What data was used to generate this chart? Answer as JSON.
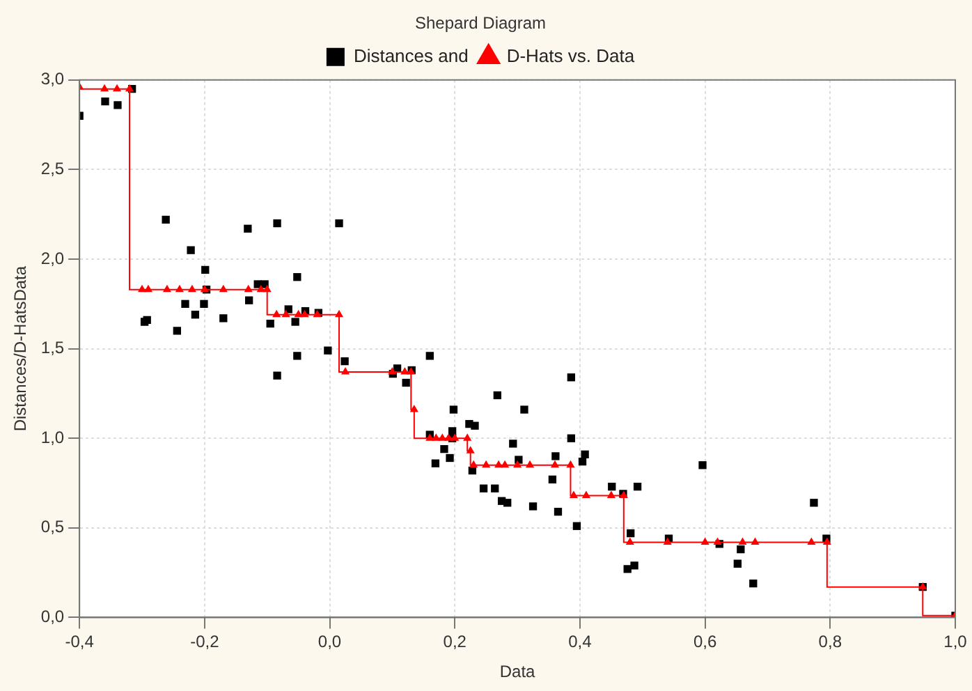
{
  "chart_data": {
    "type": "scatter",
    "title": "Shepard Diagram",
    "xlabel": "Data",
    "ylabel": "Distances/D-HatsData",
    "legend": "top",
    "grid": true,
    "xlim": [
      -0.4,
      1.0
    ],
    "xticks": [
      {
        "value": -0.4,
        "label": "-0,4"
      },
      {
        "value": -0.2,
        "label": "-0,2"
      },
      {
        "value": 0,
        "label": "0,0"
      },
      {
        "value": 0.2,
        "label": "0,2"
      },
      {
        "value": 0.4,
        "label": "0,4"
      },
      {
        "value": 0.6,
        "label": "0,6"
      },
      {
        "value": 0.8,
        "label": "0,8"
      },
      {
        "value": 1.0,
        "label": "1,0"
      }
    ],
    "ylim": [
      0,
      3.0
    ],
    "yticks": [
      {
        "value": 0,
        "label": "0,0"
      },
      {
        "value": 0.5,
        "label": "0,5"
      },
      {
        "value": 1.0,
        "label": "1,0"
      },
      {
        "value": 1.5,
        "label": "1,5"
      },
      {
        "value": 2.0,
        "label": "2,0"
      },
      {
        "value": 2.5,
        "label": "2,5"
      },
      {
        "value": 3.0,
        "label": "3,0"
      }
    ],
    "series": [
      {
        "name": "Distances and",
        "marker": "square",
        "color": "#000000",
        "x": [
          -0.4,
          -0.359,
          -0.339,
          -0.316,
          -0.262,
          -0.222,
          -0.199,
          -0.197,
          -0.231,
          -0.201,
          -0.215,
          -0.296,
          -0.292,
          -0.244,
          -0.17,
          -0.131,
          -0.084,
          -0.129,
          -0.115,
          -0.104,
          -0.052,
          -0.066,
          -0.055,
          -0.039,
          -0.018,
          -0.095,
          0.015,
          -0.003,
          -0.052,
          0.024,
          -0.084,
          0.16,
          0.108,
          0.131,
          0.101,
          0.122,
          0.198,
          0.268,
          0.311,
          0.386,
          0.16,
          0.223,
          0.232,
          0.196,
          0.196,
          0.183,
          0.192,
          0.169,
          0.228,
          0.293,
          0.386,
          0.361,
          0.408,
          0.404,
          0.302,
          0.356,
          0.246,
          0.264,
          0.275,
          0.284,
          0.325,
          0.365,
          0.451,
          0.469,
          0.492,
          0.395,
          0.481,
          0.542,
          0.623,
          0.476,
          0.487,
          0.596,
          0.657,
          0.652,
          0.677,
          0.774,
          0.794,
          0.948,
          1.0
        ],
        "values": [
          2.8,
          2.88,
          2.86,
          2.95,
          2.22,
          2.05,
          1.94,
          1.83,
          1.75,
          1.75,
          1.69,
          1.65,
          1.66,
          1.6,
          1.67,
          2.17,
          2.2,
          1.77,
          1.86,
          1.86,
          1.9,
          1.72,
          1.65,
          1.71,
          1.7,
          1.64,
          2.2,
          1.49,
          1.46,
          1.43,
          1.35,
          1.46,
          1.39,
          1.38,
          1.36,
          1.31,
          1.16,
          1.24,
          1.16,
          1.34,
          1.02,
          1.08,
          1.07,
          1.04,
          1.0,
          0.94,
          0.89,
          0.86,
          0.82,
          0.97,
          1.0,
          0.9,
          0.91,
          0.87,
          0.88,
          0.77,
          0.72,
          0.72,
          0.65,
          0.64,
          0.62,
          0.59,
          0.73,
          0.69,
          0.73,
          0.51,
          0.47,
          0.44,
          0.41,
          0.27,
          0.29,
          0.85,
          0.38,
          0.3,
          0.19,
          0.64,
          0.44,
          0.17,
          0.01
        ]
      },
      {
        "name": "D-Hats vs. Data",
        "type": "step",
        "marker": "triangle",
        "color": "#ff0000",
        "x": [
          -0.4,
          -0.36,
          -0.34,
          -0.32,
          -0.3,
          -0.29,
          -0.26,
          -0.24,
          -0.22,
          -0.2,
          -0.17,
          -0.13,
          -0.11,
          -0.1,
          -0.085,
          -0.07,
          -0.05,
          -0.04,
          -0.02,
          0.015,
          0.025,
          0.1,
          0.12,
          0.13,
          0.135,
          0.16,
          0.17,
          0.18,
          0.19,
          0.2,
          0.22,
          0.225,
          0.23,
          0.25,
          0.27,
          0.28,
          0.3,
          0.32,
          0.36,
          0.385,
          0.39,
          0.41,
          0.45,
          0.47,
          0.48,
          0.54,
          0.6,
          0.62,
          0.66,
          0.68,
          0.77,
          0.795,
          0.948,
          1.0
        ],
        "values": [
          2.96,
          2.95,
          2.95,
          2.95,
          1.83,
          1.83,
          1.83,
          1.83,
          1.83,
          1.83,
          1.83,
          1.83,
          1.83,
          1.83,
          1.69,
          1.69,
          1.69,
          1.69,
          1.69,
          1.69,
          1.37,
          1.37,
          1.37,
          1.37,
          1.16,
          1.0,
          1.0,
          1.0,
          1.0,
          1.0,
          1.0,
          0.93,
          0.85,
          0.85,
          0.85,
          0.85,
          0.85,
          0.85,
          0.85,
          0.85,
          0.68,
          0.68,
          0.68,
          0.68,
          0.42,
          0.42,
          0.42,
          0.42,
          0.42,
          0.42,
          0.42,
          0.42,
          0.17,
          0.01
        ]
      }
    ]
  }
}
